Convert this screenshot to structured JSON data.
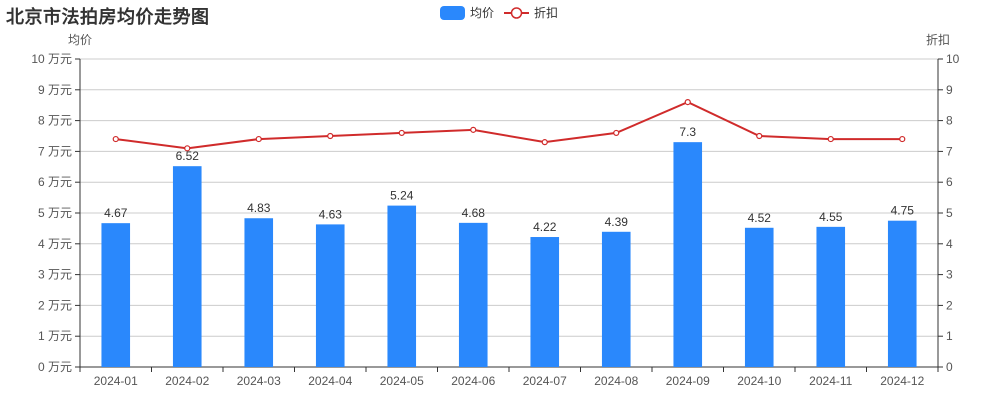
{
  "title": "北京市法拍房均价走势图",
  "legend": {
    "items": [
      {
        "label": "均价",
        "type": "bar",
        "color": "#2a88fc"
      },
      {
        "label": "折扣",
        "type": "line",
        "color": "#d02b2b"
      }
    ]
  },
  "axes": {
    "left_name": "均价",
    "right_name": "折扣",
    "left_unit": "万元"
  },
  "chart_data": {
    "type": "bar",
    "title": "北京市法拍房均价走势图",
    "categories": [
      "2024-01",
      "2024-02",
      "2024-03",
      "2024-04",
      "2024-05",
      "2024-06",
      "2024-07",
      "2024-08",
      "2024-09",
      "2024-10",
      "2024-11",
      "2024-12"
    ],
    "series": [
      {
        "name": "均价",
        "type": "bar",
        "axis": "left",
        "color": "#2a88fc",
        "values": [
          4.67,
          6.52,
          4.83,
          4.63,
          5.24,
          4.68,
          4.22,
          4.39,
          7.3,
          4.52,
          4.55,
          4.75
        ],
        "data_labels": true
      },
      {
        "name": "折扣",
        "type": "line",
        "axis": "right",
        "color": "#d02b2b",
        "values": [
          7.4,
          7.1,
          7.4,
          7.5,
          7.6,
          7.7,
          7.3,
          7.6,
          8.6,
          7.5,
          7.4,
          7.4
        ],
        "data_labels": false
      }
    ],
    "xlabel": "",
    "ylabel": "均价",
    "ylabel_right": "折扣",
    "ylim": [
      0,
      10
    ],
    "ylim_right": [
      0,
      10
    ],
    "yticks": [
      "0 万元",
      "1 万元",
      "2 万元",
      "3 万元",
      "4 万元",
      "5 万元",
      "6 万元",
      "7 万元",
      "8 万元",
      "9 万元",
      "10 万元"
    ],
    "yticks_right": [
      "0",
      "1",
      "2",
      "3",
      "4",
      "5",
      "6",
      "7",
      "8",
      "9",
      "10"
    ],
    "grid": true,
    "legend_position": "top-center"
  }
}
